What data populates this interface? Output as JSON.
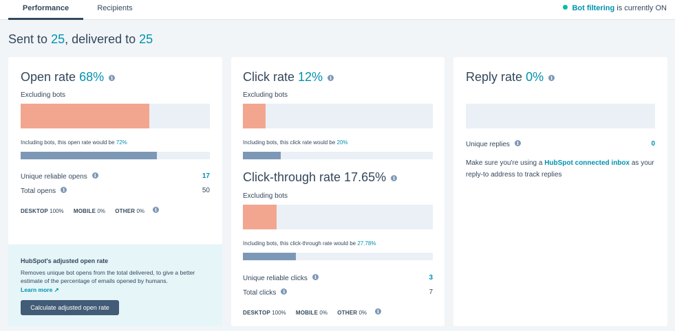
{
  "tabs": [
    {
      "label": "Performance",
      "active": true
    },
    {
      "label": "Recipients",
      "active": false
    }
  ],
  "bot_filtering": {
    "link": "Bot filtering",
    "suffix": "is currently ON",
    "status_color": "#00bda5"
  },
  "summary": {
    "prefix": "Sent to",
    "sent": "25",
    "middle": ", delivered to",
    "delivered": "25"
  },
  "open_rate": {
    "title": "Open rate",
    "value": "68%",
    "excluding_label": "Excluding bots",
    "excluding_fraction": 0.68,
    "including_text": "Including bots, this open rate would be",
    "including_value": "72%",
    "including_fraction": 0.72,
    "unique_label": "Unique reliable opens",
    "unique_value": "17",
    "total_label": "Total opens",
    "total_value": "50",
    "devices": [
      {
        "name": "DESKTOP",
        "value": "100%"
      },
      {
        "name": "MOBILE",
        "value": "0%"
      },
      {
        "name": "OTHER",
        "value": "0%"
      }
    ]
  },
  "adjusted": {
    "title": "HubSpot's adjusted open rate",
    "description": "Removes unique bot opens from the total delivered, to give a better estimate of the percentage of emails opened by humans.",
    "learn_more": "Learn more",
    "button": "Calculate adjusted open rate"
  },
  "click_rate": {
    "title": "Click rate",
    "value": "12%",
    "excluding_label": "Excluding bots",
    "excluding_fraction": 0.12,
    "including_text": "Including bots, this click rate would be",
    "including_value": "20%",
    "including_fraction": 0.2
  },
  "ctr": {
    "title": "Click-through rate 17.65%",
    "excluding_label": "Excluding bots",
    "excluding_fraction": 0.1765,
    "including_text": "Including bots, this click-through rate would be",
    "including_value": "27.78%",
    "including_fraction": 0.2778,
    "unique_label": "Unique reliable clicks",
    "unique_value": "3",
    "total_label": "Total clicks",
    "total_value": "7",
    "devices": [
      {
        "name": "DESKTOP",
        "value": "100%"
      },
      {
        "name": "MOBILE",
        "value": "0%"
      },
      {
        "name": "OTHER",
        "value": "0%"
      }
    ]
  },
  "reply_rate": {
    "title": "Reply rate",
    "value": "0%",
    "excluding_fraction": 0,
    "unique_label": "Unique replies",
    "unique_value": "0",
    "note_prefix": "Make sure you're using a",
    "note_link": "HubSpot connected inbox",
    "note_suffix": "as your reply-to address to track replies"
  },
  "colors": {
    "accent": "#0091ae",
    "bar_fill": "#f2a68f",
    "bar_bg": "#eaf0f6",
    "thin_fill": "#7c98b6",
    "button": "#425b76"
  }
}
